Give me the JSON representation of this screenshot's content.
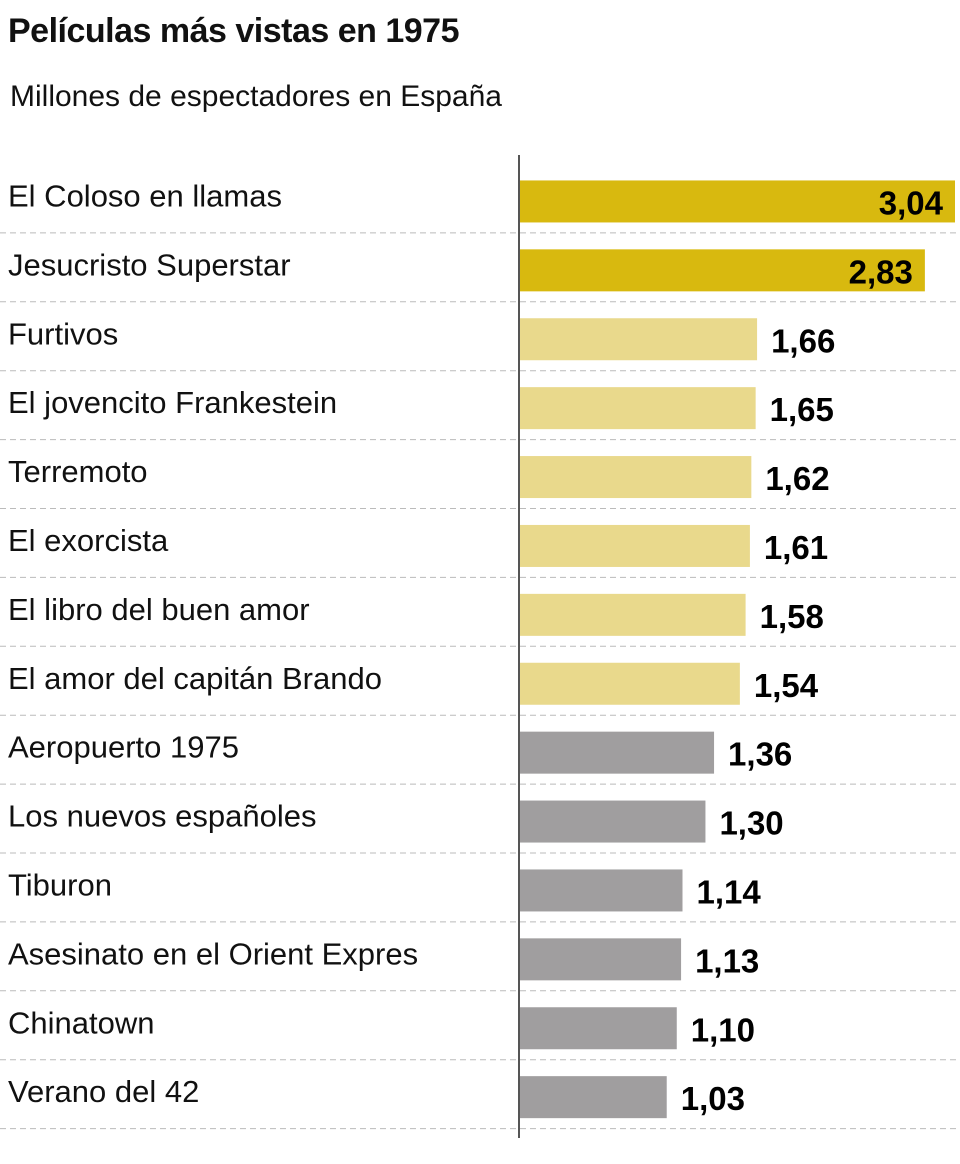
{
  "chart_data": {
    "type": "bar",
    "orientation": "horizontal",
    "title": "Películas más vistas en 1975",
    "subtitle": "Millones de espectadores en España",
    "xlabel": "",
    "ylabel": "",
    "xlim": [
      0,
      3.04
    ],
    "grid": "dashed row separators",
    "legend": "none",
    "categories": [
      "El Coloso en llamas",
      "Jesucristo Superstar",
      "Furtivos",
      "El jovencito Frankestein",
      "Terremoto",
      "El exorcista",
      "El libro del buen amor",
      "El amor del capitán Brando",
      "Aeropuerto 1975",
      "Los nuevos españoles",
      "Tiburon",
      "Asesinato en el Orient Expres",
      "Chinatown",
      "Verano del 42"
    ],
    "values": [
      3.04,
      2.83,
      1.66,
      1.65,
      1.62,
      1.61,
      1.58,
      1.54,
      1.36,
      1.3,
      1.14,
      1.13,
      1.1,
      1.03
    ],
    "value_labels": [
      "3,04",
      "2,83",
      "1,66",
      "1,65",
      "1,62",
      "1,61",
      "1,58",
      "1,54",
      "1,36",
      "1,30",
      "1,14",
      "1,13",
      "1,10",
      "1,03"
    ],
    "groups": [
      "top",
      "top",
      "mid",
      "mid",
      "mid",
      "mid",
      "mid",
      "mid",
      "low",
      "low",
      "low",
      "low",
      "low",
      "low"
    ],
    "colors": {
      "top": "#d8b90f",
      "mid": "#e9d98c",
      "low": "#a09e9f",
      "axis": "#555555",
      "grid": "#bbbbbb"
    }
  }
}
